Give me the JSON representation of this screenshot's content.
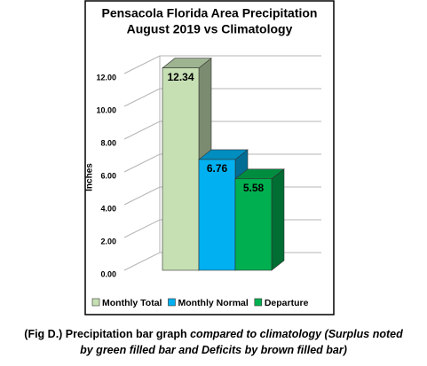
{
  "chart_data": {
    "type": "bar",
    "title": "Pensacola Florida Area Precipitation",
    "subtitle": "August 2019 vs Climatology",
    "y_label": "Inches",
    "series": [
      {
        "name": "Monthly Total",
        "color": "#c6e0b4",
        "values": [
          12.34
        ]
      },
      {
        "name": "Monthly Normal",
        "color": "#00b0f0",
        "values": [
          6.76
        ]
      },
      {
        "name": "Departure",
        "color": "#00b050",
        "values": [
          5.58
        ]
      }
    ],
    "ylim": [
      0,
      12
    ],
    "yticks": [
      {
        "value": 0,
        "label": "0.00"
      },
      {
        "value": 2,
        "label": "2.00"
      },
      {
        "value": 4,
        "label": "4.00"
      },
      {
        "value": 6,
        "label": "6.00"
      },
      {
        "value": 8,
        "label": "8.00"
      },
      {
        "value": 10,
        "label": "10.00"
      },
      {
        "value": 12,
        "label": "12.00"
      }
    ],
    "grid": true,
    "legend": "bottom",
    "caption": {
      "text": "(Fig D.) Precipitation bar graph",
      "italic_text": "compared to climatology (Surplus noted by green filled bar and Deficits by brown filled bar)"
    }
  }
}
